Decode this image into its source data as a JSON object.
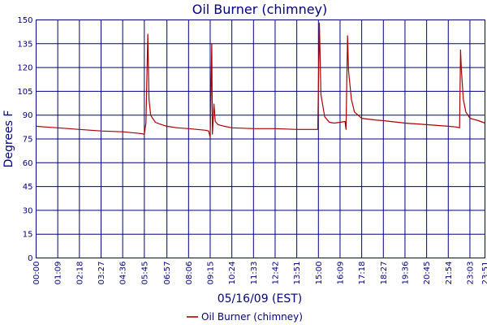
{
  "chart_data": {
    "type": "line",
    "title": "Oil Burner (chimney)",
    "xlabel": "05/16/09 (EST)",
    "ylabel": "Degrees F",
    "ylim": [
      0,
      150
    ],
    "yticks": [
      0,
      15,
      30,
      45,
      60,
      75,
      90,
      105,
      120,
      135,
      150
    ],
    "xlim": [
      "00:00",
      "23:51"
    ],
    "xticks": [
      "00:00",
      "01:09",
      "02:18",
      "03:27",
      "04:36",
      "05:45",
      "06:57",
      "08:06",
      "09:15",
      "10:24",
      "11:33",
      "12:42",
      "13:51",
      "15:00",
      "16:09",
      "17:18",
      "18:27",
      "19:36",
      "20:45",
      "21:54",
      "23:03",
      "23:51"
    ],
    "grid": true,
    "legend_position": "bottom",
    "series": [
      {
        "name": "Oil Burner (chimney)",
        "color": "#aa0000",
        "points": [
          [
            "00:00",
            83
          ],
          [
            "00:30",
            82.5
          ],
          [
            "01:09",
            82
          ],
          [
            "02:18",
            81
          ],
          [
            "03:27",
            80
          ],
          [
            "04:36",
            79.5
          ],
          [
            "05:30",
            78.5
          ],
          [
            "05:45",
            78
          ],
          [
            "05:50",
            85
          ],
          [
            "05:56",
            141
          ],
          [
            "06:00",
            100
          ],
          [
            "06:05",
            90
          ],
          [
            "06:20",
            85.5
          ],
          [
            "06:40",
            84
          ],
          [
            "06:57",
            83
          ],
          [
            "07:30",
            82
          ],
          [
            "08:06",
            81.5
          ],
          [
            "09:00",
            80.5
          ],
          [
            "09:10",
            80
          ],
          [
            "09:15",
            76
          ],
          [
            "09:20",
            135
          ],
          [
            "09:22",
            78
          ],
          [
            "09:27",
            97
          ],
          [
            "09:31",
            86
          ],
          [
            "09:40",
            84
          ],
          [
            "10:00",
            83
          ],
          [
            "10:24",
            82
          ],
          [
            "11:33",
            81.5
          ],
          [
            "12:42",
            81.5
          ],
          [
            "13:51",
            81
          ],
          [
            "14:50",
            81
          ],
          [
            "14:58",
            81
          ],
          [
            "15:03",
            148
          ],
          [
            "15:08",
            103
          ],
          [
            "15:20",
            89
          ],
          [
            "15:35",
            85.5
          ],
          [
            "15:50",
            85
          ],
          [
            "16:09",
            85.5
          ],
          [
            "16:25",
            86
          ],
          [
            "16:28",
            81
          ],
          [
            "16:33",
            140
          ],
          [
            "16:36",
            118
          ],
          [
            "16:45",
            100
          ],
          [
            "16:55",
            92
          ],
          [
            "17:18",
            88
          ],
          [
            "18:00",
            87
          ],
          [
            "18:27",
            86.5
          ],
          [
            "19:36",
            85
          ],
          [
            "20:45",
            84
          ],
          [
            "21:54",
            83
          ],
          [
            "22:20",
            82.5
          ],
          [
            "22:30",
            82
          ],
          [
            "22:33",
            131
          ],
          [
            "22:36",
            118
          ],
          [
            "22:42",
            100
          ],
          [
            "22:50",
            92
          ],
          [
            "23:03",
            88
          ],
          [
            "23:30",
            86.5
          ],
          [
            "23:51",
            85
          ]
        ]
      }
    ]
  }
}
